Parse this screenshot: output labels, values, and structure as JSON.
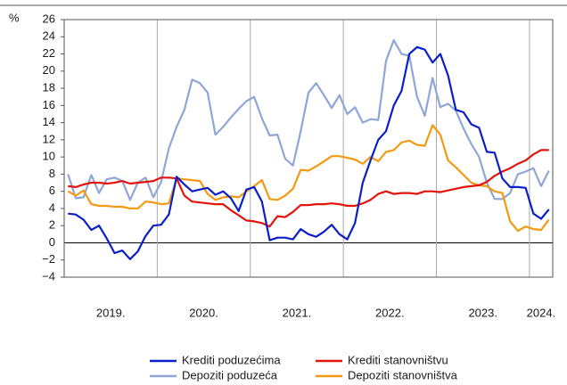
{
  "chart_data": {
    "type": "line",
    "y_unit": "%",
    "ylim": [
      -4,
      26
    ],
    "yticks": [
      {
        "value": -4,
        "label": "−4"
      },
      {
        "value": -2,
        "label": "−2"
      },
      0,
      2,
      4,
      6,
      8,
      10,
      12,
      14,
      16,
      18,
      20,
      22,
      24,
      26
    ],
    "year_labels": [
      "2019.",
      "2020.",
      "2021.",
      "2022.",
      "2023.",
      "2024."
    ],
    "months_per_year": 12,
    "series": [
      {
        "name": "Krediti poduzećima",
        "color": "#0b1fc8",
        "values": [
          3.4,
          3.3,
          2.7,
          1.5,
          2.0,
          0.5,
          -1.2,
          -0.9,
          -1.9,
          -1.0,
          0.8,
          2.0,
          2.1,
          3.3,
          7.7,
          6.8,
          6.0,
          6.2,
          6.4,
          5.6,
          6.0,
          5.2,
          3.7,
          6.2,
          6.5,
          4.8,
          0.3,
          0.6,
          0.6,
          0.4,
          1.6,
          1.0,
          0.7,
          1.3,
          2.1,
          1.0,
          0.4,
          2.3,
          7.0,
          9.6,
          12.0,
          13.0,
          16.0,
          17.7,
          22.0,
          22.8,
          22.5,
          21.0,
          22.0,
          19.5,
          15.5,
          15.2,
          13.8,
          13.4,
          10.6,
          10.5,
          7.5,
          6.5,
          6.5,
          6.4,
          3.4,
          2.8,
          3.9
        ]
      },
      {
        "name": "Krediti stanovništvu",
        "color": "#e3140c",
        "values": [
          6.6,
          6.5,
          6.8,
          7.0,
          7.0,
          6.9,
          7.0,
          7.2,
          6.9,
          7.0,
          7.1,
          7.2,
          7.6,
          7.6,
          7.5,
          5.5,
          4.8,
          4.7,
          4.6,
          4.5,
          4.5,
          3.8,
          3.2,
          2.6,
          2.5,
          2.3,
          1.9,
          3.1,
          3.0,
          3.6,
          4.4,
          4.4,
          4.5,
          4.5,
          4.6,
          4.5,
          4.3,
          4.3,
          4.6,
          5.0,
          5.7,
          6.0,
          5.7,
          5.8,
          5.8,
          5.7,
          6.0,
          6.0,
          5.9,
          6.1,
          6.3,
          6.5,
          6.6,
          6.7,
          7.1,
          7.8,
          8.3,
          8.7,
          9.2,
          9.6,
          10.3,
          10.8,
          10.8
        ]
      },
      {
        "name": "Depoziti poduzeća",
        "color": "#8ea6d8",
        "values": [
          8.0,
          5.2,
          5.3,
          7.9,
          5.8,
          7.4,
          7.6,
          7.2,
          5.0,
          7.0,
          7.6,
          5.3,
          7.1,
          11.0,
          13.5,
          15.5,
          19.0,
          18.6,
          17.5,
          12.6,
          13.5,
          14.6,
          15.6,
          16.5,
          17.0,
          14.5,
          12.5,
          12.6,
          9.8,
          9.0,
          13.0,
          17.5,
          18.6,
          17.2,
          15.7,
          17.2,
          15.0,
          15.8,
          14.0,
          14.4,
          14.3,
          21.2,
          23.6,
          22.0,
          21.8,
          17.0,
          14.8,
          19.2,
          15.8,
          16.2,
          15.4,
          13.3,
          11.5,
          10.0,
          7.0,
          5.1,
          5.1,
          5.8,
          8.0,
          8.3,
          8.7,
          6.6,
          8.4
        ]
      },
      {
        "name": "Depoziti stanovništva",
        "color": "#f39a12",
        "values": [
          6.0,
          5.5,
          6.1,
          4.5,
          4.3,
          4.3,
          4.2,
          4.2,
          4.0,
          4.0,
          4.8,
          4.7,
          4.5,
          4.6,
          7.5,
          7.4,
          7.3,
          7.2,
          5.7,
          5.0,
          5.3,
          5.4,
          5.3,
          6.0,
          6.6,
          7.3,
          5.1,
          5.0,
          5.5,
          6.3,
          8.5,
          8.4,
          8.9,
          9.5,
          10.1,
          10.1,
          9.9,
          9.7,
          9.2,
          10.0,
          9.5,
          10.6,
          10.8,
          11.7,
          11.9,
          11.4,
          11.3,
          13.7,
          12.6,
          9.6,
          8.8,
          7.9,
          7.0,
          6.7,
          6.6,
          6.0,
          5.8,
          2.5,
          1.4,
          1.9,
          1.6,
          1.5,
          2.7
        ]
      }
    ]
  }
}
